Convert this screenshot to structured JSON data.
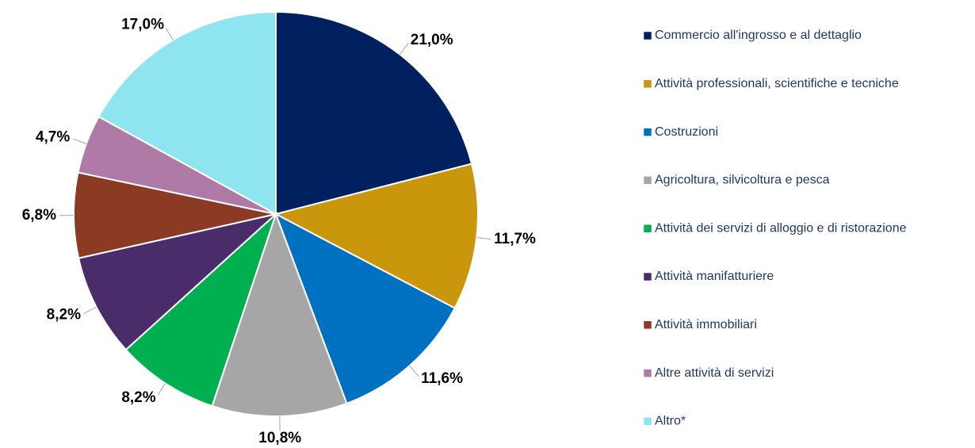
{
  "chart_data": {
    "type": "pie",
    "categories": [
      "Commercio all'ingrosso e al dettaglio",
      "Attività professionali, scientifiche e tecniche",
      "Costruzioni",
      "Agricoltura, silvicoltura e pesca",
      "Attività dei servizi di alloggio e di ristorazione",
      "Attività manifatturiere",
      "Attività immobiliari",
      "Altre attività di servizi",
      "Altro*"
    ],
    "values": [
      21.0,
      11.7,
      11.6,
      10.8,
      8.2,
      8.2,
      6.8,
      4.7,
      17.0
    ],
    "value_labels": [
      "21,0%",
      "11,7%",
      "11,6%",
      "10,8%",
      "8,2%",
      "8,2%",
      "6,8%",
      "4,7%",
      "17,0%"
    ],
    "colors": [
      "#002060",
      "#c9960c",
      "#0070c0",
      "#a6a6a6",
      "#00b050",
      "#4b2c6a",
      "#8b3a24",
      "#b07aa6",
      "#8ee5f0"
    ],
    "legend": "right"
  }
}
